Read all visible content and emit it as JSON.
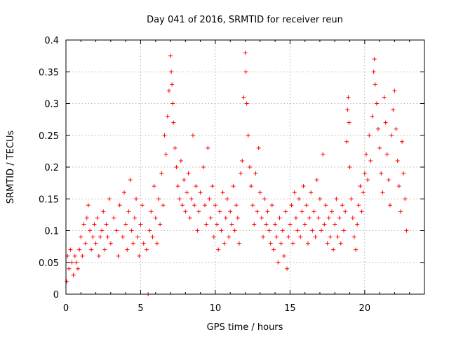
{
  "chart_data": {
    "type": "scatter",
    "title": "Day 041 of 2016, SRMTID for receiver reun",
    "xlabel": "GPS time / hours",
    "ylabel": "SRMTID / TECUs",
    "xlim": [
      0,
      24
    ],
    "ylim": [
      0,
      0.4
    ],
    "xticks": [
      0,
      5,
      10,
      15,
      20
    ],
    "xtick_labels": [
      "0",
      "5",
      "10",
      "15",
      "20"
    ],
    "yticks": [
      0,
      0.05,
      0.1,
      0.15,
      0.2,
      0.25,
      0.3,
      0.35,
      0.4
    ],
    "ytick_labels": [
      "0",
      "0.05",
      "0.1",
      "0.15",
      "0.2",
      "0.25",
      "0.3",
      "0.35",
      "0.4"
    ],
    "grid": true,
    "marker": "plus",
    "color": "#ff0000",
    "series": [
      {
        "name": "SRMTID",
        "points": [
          [
            0.05,
            0.02
          ],
          [
            0.1,
            0.06
          ],
          [
            0.2,
            0.04
          ],
          [
            0.3,
            0.07
          ],
          [
            0.4,
            0.05
          ],
          [
            0.5,
            0.03
          ],
          [
            0.6,
            0.06
          ],
          [
            0.7,
            0.05
          ],
          [
            0.8,
            0.04
          ],
          [
            0.9,
            0.07
          ],
          [
            1.0,
            0.09
          ],
          [
            1.1,
            0.06
          ],
          [
            1.2,
            0.11
          ],
          [
            1.3,
            0.08
          ],
          [
            1.4,
            0.12
          ],
          [
            1.5,
            0.14
          ],
          [
            1.6,
            0.1
          ],
          [
            1.7,
            0.07
          ],
          [
            1.8,
            0.09
          ],
          [
            1.9,
            0.11
          ],
          [
            2.0,
            0.08
          ],
          [
            2.1,
            0.12
          ],
          [
            2.2,
            0.06
          ],
          [
            2.3,
            0.09
          ],
          [
            2.4,
            0.1
          ],
          [
            2.5,
            0.13
          ],
          [
            2.6,
            0.07
          ],
          [
            2.7,
            0.11
          ],
          [
            2.8,
            0.09
          ],
          [
            2.9,
            0.15
          ],
          [
            3.0,
            0.08
          ],
          [
            3.2,
            0.12
          ],
          [
            3.4,
            0.1
          ],
          [
            3.5,
            0.06
          ],
          [
            3.6,
            0.14
          ],
          [
            3.8,
            0.09
          ],
          [
            3.9,
            0.16
          ],
          [
            4.0,
            0.11
          ],
          [
            4.1,
            0.07
          ],
          [
            4.2,
            0.13
          ],
          [
            4.3,
            0.18
          ],
          [
            4.4,
            0.1
          ],
          [
            4.5,
            0.08
          ],
          [
            4.6,
            0.12
          ],
          [
            4.7,
            0.15
          ],
          [
            4.8,
            0.09
          ],
          [
            4.9,
            0.06
          ],
          [
            5.0,
            0.11
          ],
          [
            5.1,
            0.14
          ],
          [
            5.2,
            0.08
          ],
          [
            5.4,
            0.07
          ],
          [
            5.5,
            0.0
          ],
          [
            5.6,
            0.1
          ],
          [
            5.7,
            0.13
          ],
          [
            5.8,
            0.09
          ],
          [
            5.9,
            0.17
          ],
          [
            6.0,
            0.12
          ],
          [
            6.1,
            0.08
          ],
          [
            6.2,
            0.15
          ],
          [
            6.3,
            0.11
          ],
          [
            6.4,
            0.19
          ],
          [
            6.5,
            0.14
          ],
          [
            6.6,
            0.25
          ],
          [
            6.7,
            0.22
          ],
          [
            6.8,
            0.28
          ],
          [
            6.9,
            0.32
          ],
          [
            7.0,
            0.375
          ],
          [
            7.05,
            0.35
          ],
          [
            7.1,
            0.33
          ],
          [
            7.15,
            0.3
          ],
          [
            7.2,
            0.27
          ],
          [
            7.3,
            0.23
          ],
          [
            7.4,
            0.2
          ],
          [
            7.5,
            0.17
          ],
          [
            7.6,
            0.15
          ],
          [
            7.7,
            0.21
          ],
          [
            7.8,
            0.14
          ],
          [
            7.9,
            0.18
          ],
          [
            8.0,
            0.13
          ],
          [
            8.1,
            0.16
          ],
          [
            8.2,
            0.19
          ],
          [
            8.3,
            0.12
          ],
          [
            8.4,
            0.15
          ],
          [
            8.5,
            0.25
          ],
          [
            8.6,
            0.14
          ],
          [
            8.7,
            0.17
          ],
          [
            8.8,
            0.1
          ],
          [
            8.9,
            0.13
          ],
          [
            9.0,
            0.16
          ],
          [
            9.2,
            0.2
          ],
          [
            9.3,
            0.14
          ],
          [
            9.4,
            0.11
          ],
          [
            9.5,
            0.23
          ],
          [
            9.6,
            0.15
          ],
          [
            9.7,
            0.12
          ],
          [
            9.8,
            0.17
          ],
          [
            9.9,
            0.09
          ],
          [
            10.0,
            0.14
          ],
          [
            10.1,
            0.11
          ],
          [
            10.2,
            0.07
          ],
          [
            10.3,
            0.13
          ],
          [
            10.4,
            0.1
          ],
          [
            10.5,
            0.16
          ],
          [
            10.6,
            0.08
          ],
          [
            10.7,
            0.12
          ],
          [
            10.8,
            0.15
          ],
          [
            10.9,
            0.09
          ],
          [
            11.0,
            0.13
          ],
          [
            11.1,
            0.11
          ],
          [
            11.2,
            0.17
          ],
          [
            11.3,
            0.1
          ],
          [
            11.4,
            0.14
          ],
          [
            11.5,
            0.12
          ],
          [
            11.6,
            0.08
          ],
          [
            11.7,
            0.19
          ],
          [
            11.8,
            0.21
          ],
          [
            11.9,
            0.31
          ],
          [
            12.0,
            0.38
          ],
          [
            12.05,
            0.35
          ],
          [
            12.1,
            0.3
          ],
          [
            12.2,
            0.25
          ],
          [
            12.3,
            0.2
          ],
          [
            12.4,
            0.17
          ],
          [
            12.5,
            0.14
          ],
          [
            12.6,
            0.11
          ],
          [
            12.7,
            0.19
          ],
          [
            12.8,
            0.13
          ],
          [
            12.9,
            0.23
          ],
          [
            13.0,
            0.16
          ],
          [
            13.1,
            0.12
          ],
          [
            13.2,
            0.09
          ],
          [
            13.3,
            0.15
          ],
          [
            13.4,
            0.11
          ],
          [
            13.5,
            0.13
          ],
          [
            13.6,
            0.1
          ],
          [
            13.7,
            0.08
          ],
          [
            13.8,
            0.14
          ],
          [
            13.9,
            0.07
          ],
          [
            14.0,
            0.11
          ],
          [
            14.1,
            0.09
          ],
          [
            14.2,
            0.05
          ],
          [
            14.3,
            0.12
          ],
          [
            14.4,
            0.08
          ],
          [
            14.5,
            0.1
          ],
          [
            14.6,
            0.06
          ],
          [
            14.7,
            0.13
          ],
          [
            14.8,
            0.04
          ],
          [
            14.9,
            0.09
          ],
          [
            15.0,
            0.11
          ],
          [
            15.1,
            0.14
          ],
          [
            15.2,
            0.08
          ],
          [
            15.3,
            0.16
          ],
          [
            15.4,
            0.12
          ],
          [
            15.5,
            0.1
          ],
          [
            15.6,
            0.15
          ],
          [
            15.7,
            0.09
          ],
          [
            15.8,
            0.13
          ],
          [
            15.9,
            0.17
          ],
          [
            16.0,
            0.11
          ],
          [
            16.1,
            0.14
          ],
          [
            16.2,
            0.08
          ],
          [
            16.3,
            0.12
          ],
          [
            16.4,
            0.16
          ],
          [
            16.5,
            0.1
          ],
          [
            16.6,
            0.13
          ],
          [
            16.7,
            0.09
          ],
          [
            16.8,
            0.18
          ],
          [
            16.9,
            0.12
          ],
          [
            17.0,
            0.15
          ],
          [
            17.1,
            0.1
          ],
          [
            17.2,
            0.22
          ],
          [
            17.3,
            0.11
          ],
          [
            17.4,
            0.14
          ],
          [
            17.5,
            0.08
          ],
          [
            17.6,
            0.12
          ],
          [
            17.7,
            0.09
          ],
          [
            17.8,
            0.13
          ],
          [
            17.9,
            0.07
          ],
          [
            18.0,
            0.11
          ],
          [
            18.1,
            0.15
          ],
          [
            18.2,
            0.09
          ],
          [
            18.3,
            0.12
          ],
          [
            18.4,
            0.08
          ],
          [
            18.5,
            0.14
          ],
          [
            18.6,
            0.1
          ],
          [
            18.7,
            0.13
          ],
          [
            18.8,
            0.24
          ],
          [
            18.85,
            0.29
          ],
          [
            18.9,
            0.31
          ],
          [
            18.95,
            0.27
          ],
          [
            19.0,
            0.2
          ],
          [
            19.1,
            0.15
          ],
          [
            19.2,
            0.12
          ],
          [
            19.3,
            0.09
          ],
          [
            19.4,
            0.07
          ],
          [
            19.5,
            0.11
          ],
          [
            19.6,
            0.14
          ],
          [
            19.7,
            0.17
          ],
          [
            19.8,
            0.13
          ],
          [
            19.9,
            0.16
          ],
          [
            20.0,
            0.19
          ],
          [
            20.1,
            0.22
          ],
          [
            20.2,
            0.18
          ],
          [
            20.3,
            0.25
          ],
          [
            20.4,
            0.21
          ],
          [
            20.5,
            0.28
          ],
          [
            20.6,
            0.35
          ],
          [
            20.65,
            0.37
          ],
          [
            20.7,
            0.33
          ],
          [
            20.8,
            0.3
          ],
          [
            20.9,
            0.26
          ],
          [
            21.0,
            0.23
          ],
          [
            21.1,
            0.19
          ],
          [
            21.2,
            0.16
          ],
          [
            21.3,
            0.31
          ],
          [
            21.4,
            0.27
          ],
          [
            21.5,
            0.22
          ],
          [
            21.6,
            0.18
          ],
          [
            21.7,
            0.14
          ],
          [
            21.8,
            0.25
          ],
          [
            21.9,
            0.29
          ],
          [
            22.0,
            0.32
          ],
          [
            22.1,
            0.26
          ],
          [
            22.2,
            0.21
          ],
          [
            22.3,
            0.17
          ],
          [
            22.4,
            0.13
          ],
          [
            22.5,
            0.24
          ],
          [
            22.6,
            0.19
          ],
          [
            22.7,
            0.15
          ],
          [
            22.8,
            0.1
          ]
        ]
      }
    ]
  }
}
